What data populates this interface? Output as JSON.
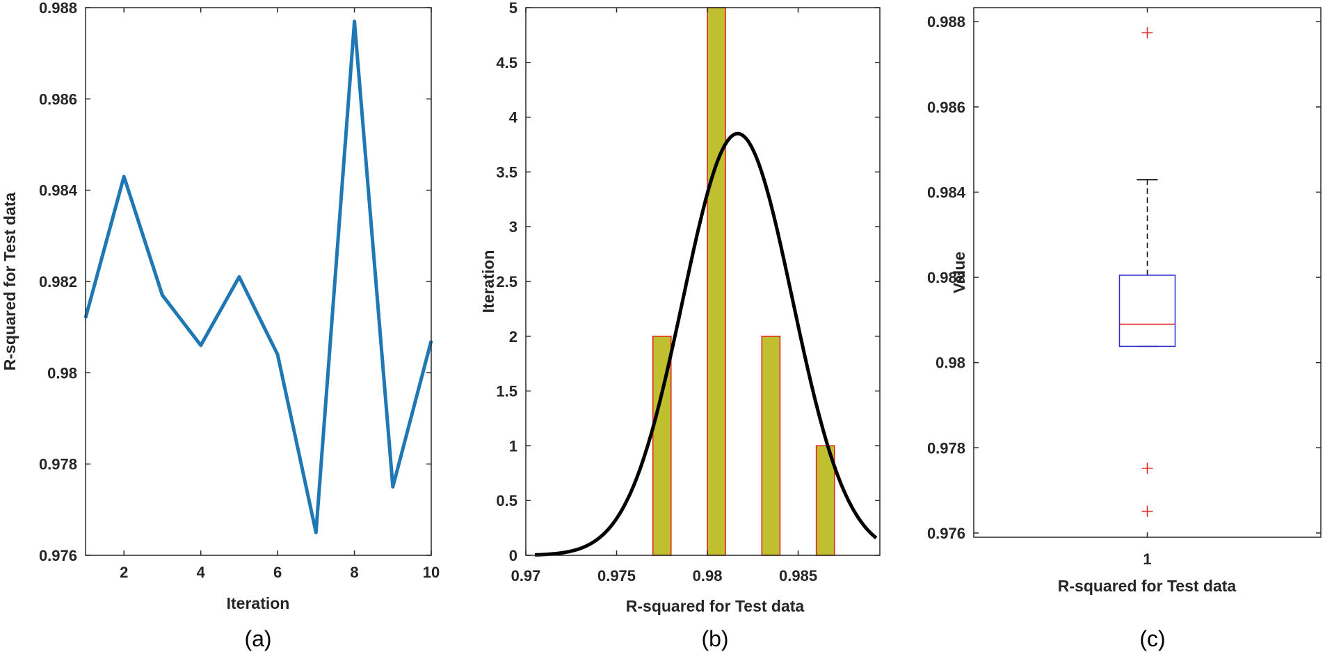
{
  "colors": {
    "line": "#1f77b4",
    "bar_fill": "#bfbf2f",
    "bar_edge": "#e01e1e",
    "fit_curve": "#000000",
    "box_edge": "#2b2bd6",
    "median": "#e01e1e",
    "outlier": "#e01e1e",
    "axis": "#262626"
  },
  "chart_data": [
    {
      "type": "line",
      "caption": "(a)",
      "xlabel": "Iteration",
      "ylabel": "R-squared for Test data",
      "x": [
        1,
        2,
        3,
        4,
        5,
        6,
        7,
        8,
        9,
        10
      ],
      "y": [
        0.9812,
        0.9843,
        0.9817,
        0.9806,
        0.9821,
        0.9804,
        0.9765,
        0.9877,
        0.9775,
        0.9807
      ],
      "xlim": [
        1,
        10
      ],
      "ylim": [
        0.976,
        0.988
      ],
      "xticks": [
        2,
        4,
        6,
        8,
        10
      ],
      "xtick_labels": [
        "2",
        "4",
        "6",
        "8",
        "10"
      ],
      "yticks": [
        0.976,
        0.978,
        0.98,
        0.982,
        0.984,
        0.986,
        0.988
      ],
      "ytick_labels": [
        "0.976",
        "0.978",
        "0.98",
        "0.982",
        "0.984",
        "0.986",
        "0.988"
      ]
    },
    {
      "type": "bar",
      "caption": "(b)",
      "xlabel": "R-squared for Test data",
      "ylabel": "Iteration",
      "bins": [
        {
          "left": 0.977,
          "right": 0.978,
          "count": 2
        },
        {
          "left": 0.98,
          "right": 0.981,
          "count": 5
        },
        {
          "left": 0.983,
          "right": 0.984,
          "count": 2
        },
        {
          "left": 0.986,
          "right": 0.987,
          "count": 1
        }
      ],
      "fit": {
        "type": "normal",
        "mean": 0.98167,
        "sd": 0.00302,
        "peak": 3.85,
        "x_start": 0.9705,
        "x_end": 0.9893
      },
      "xlim": [
        0.97,
        0.9895
      ],
      "ylim": [
        0,
        5
      ],
      "xticks": [
        0.97,
        0.975,
        0.98,
        0.985
      ],
      "xtick_labels": [
        "0.97",
        "0.975",
        "0.98",
        "0.985"
      ],
      "yticks": [
        0,
        0.5,
        1,
        1.5,
        2,
        2.5,
        3,
        3.5,
        4,
        4.5,
        5
      ],
      "ytick_labels": [
        "0",
        "0.5",
        "1",
        "1.5",
        "2",
        "2.5",
        "3",
        "3.5",
        "4",
        "4.5",
        "5"
      ]
    },
    {
      "type": "box",
      "caption": "(c)",
      "xlabel": "R-squared for Test data",
      "ylabel": "Value",
      "category": "1",
      "median": 0.9809,
      "q1": 0.98038,
      "q3": 0.98205,
      "whisker_low": 0.98038,
      "whisker_high": 0.98429,
      "outliers": [
        0.98774,
        0.97752,
        0.97651
      ],
      "ylim": [
        0.9759,
        0.98833
      ],
      "yticks": [
        0.976,
        0.978,
        0.98,
        0.982,
        0.984,
        0.986,
        0.988
      ],
      "ytick_labels": [
        "0.976",
        "0.978",
        "0.98",
        "0.982",
        "0.984",
        "0.986",
        "0.988"
      ]
    }
  ]
}
